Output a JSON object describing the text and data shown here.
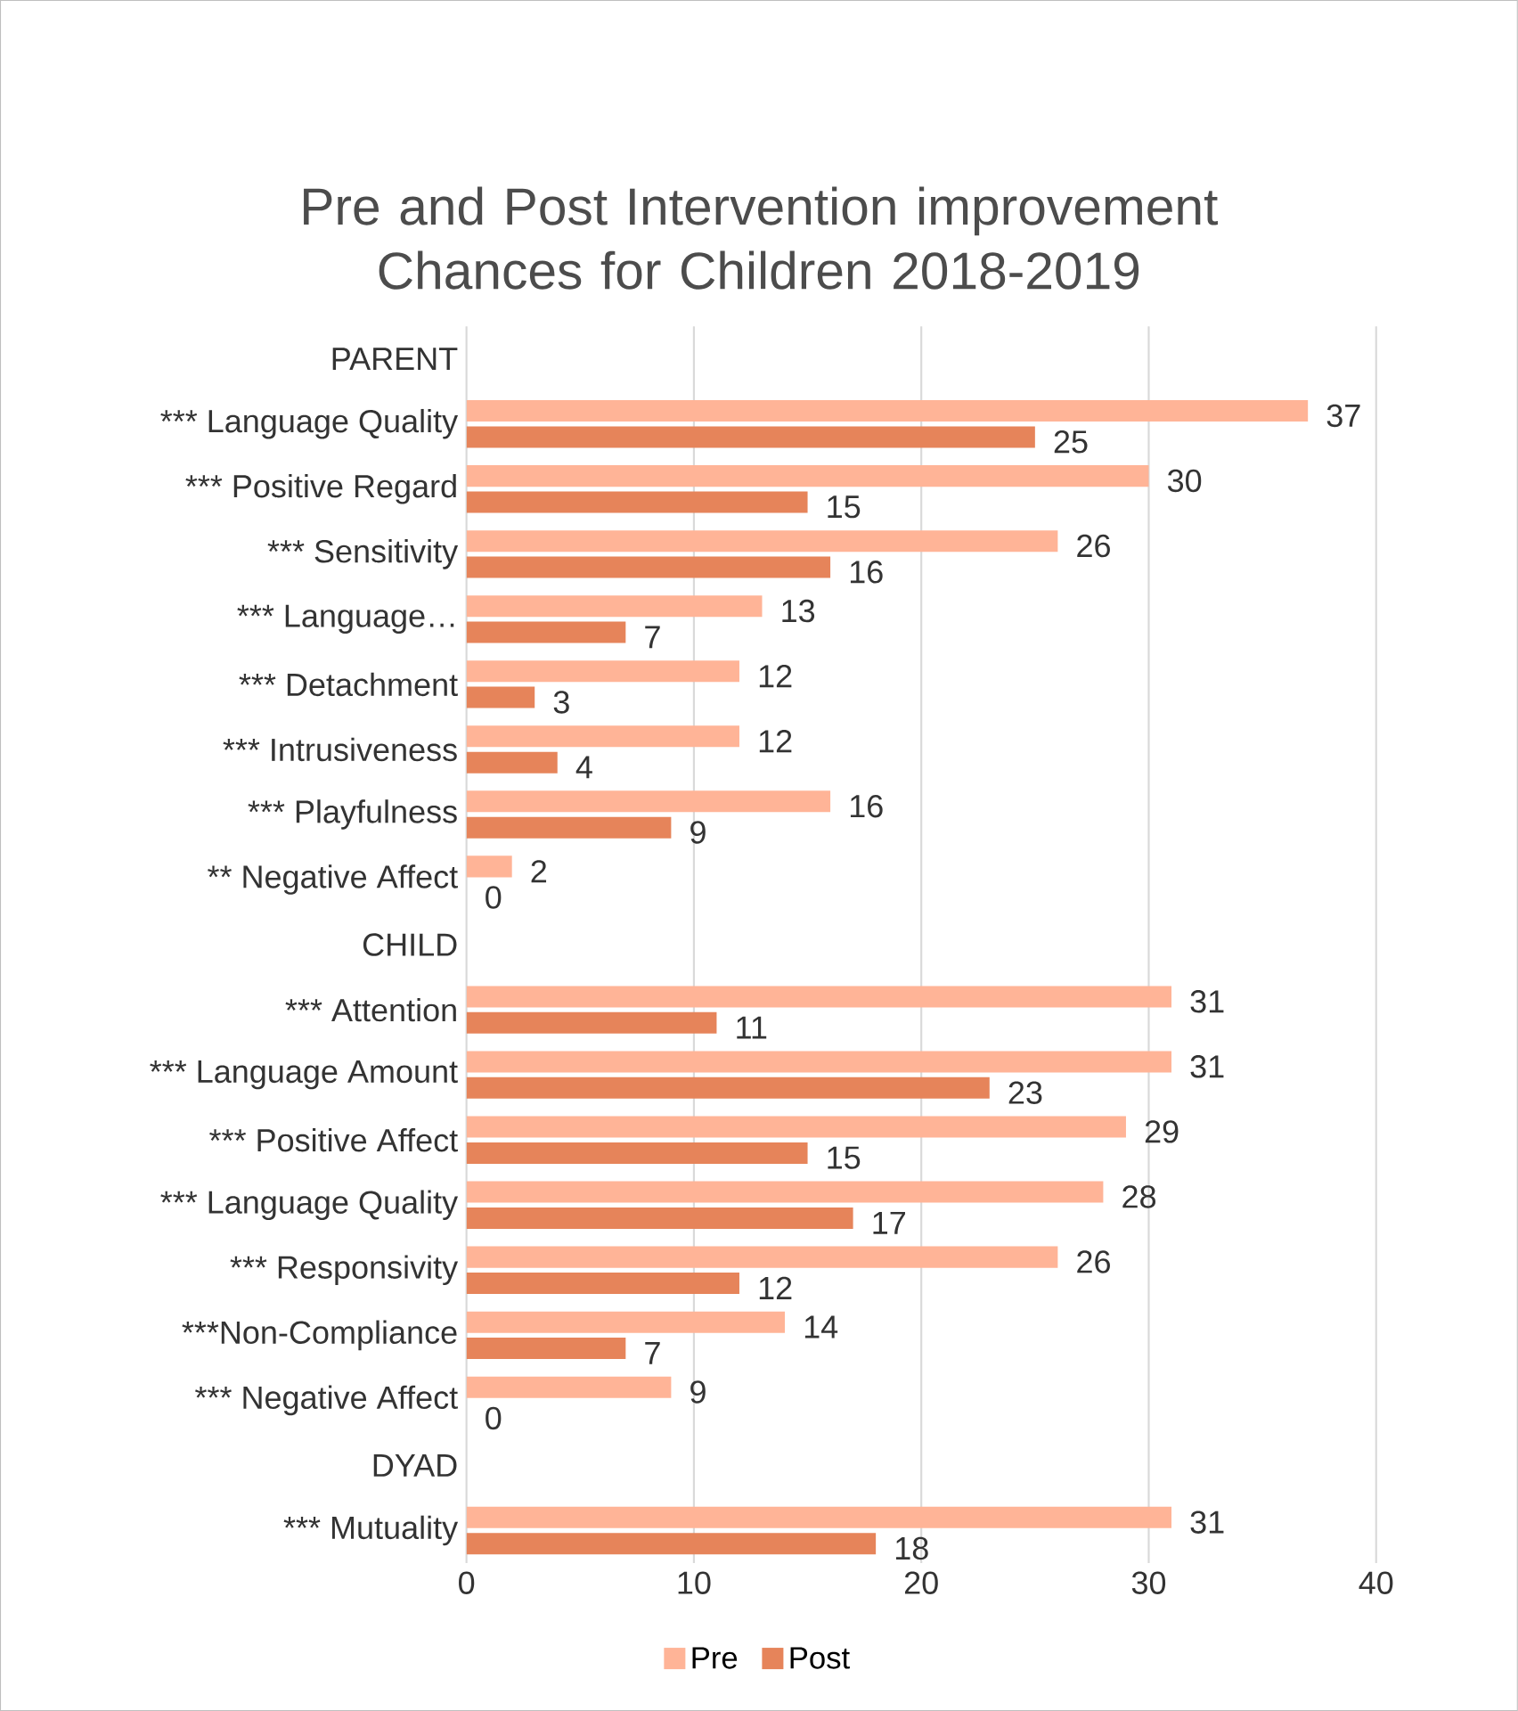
{
  "chart_data": {
    "type": "bar",
    "orientation": "horizontal",
    "title": "Pre and Post Intervention improvement Chances for Children 2018-2019",
    "categories": [
      "PARENT",
      "*** Language Quality",
      "*** Positive Regard",
      "*** Sensitivity",
      "*** Language…",
      "*** Detachment",
      "*** Intrusiveness",
      "*** Playfulness",
      "** Negative Affect",
      "CHILD",
      "*** Attention",
      "*** Language Amount",
      "*** Positive Affect",
      "*** Language Quality",
      "*** Responsivity",
      "***Non-Compliance",
      "*** Negative Affect",
      "DYAD",
      "*** Mutuality"
    ],
    "series": [
      {
        "name": "Pre",
        "color": "#ffb497",
        "values": [
          null,
          37,
          30,
          26,
          13,
          12,
          12,
          16,
          2,
          null,
          31,
          31,
          29,
          28,
          26,
          14,
          9,
          null,
          31
        ]
      },
      {
        "name": "Post",
        "color": "#e6845a",
        "values": [
          null,
          25,
          15,
          16,
          7,
          3,
          4,
          9,
          0,
          null,
          11,
          23,
          15,
          17,
          12,
          7,
          0,
          null,
          18
        ]
      }
    ],
    "xlim": [
      0,
      46
    ],
    "xticks": [
      0,
      10,
      20,
      30,
      40
    ],
    "grid": "x",
    "legend": "bottom",
    "data_labels": true
  }
}
